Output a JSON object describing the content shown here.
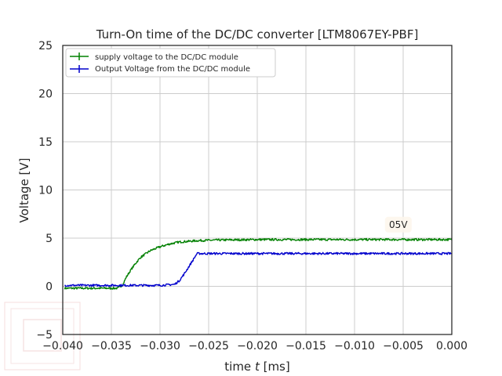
{
  "chart_data": {
    "type": "line",
    "title": "Turn-On time of the DC/DC converter [LTM8067EY-PBF]",
    "xlabel": "time $t$ [ms]",
    "xlabel_prefix": "time ",
    "xlabel_var": "t",
    "xlabel_suffix": " [ms]",
    "ylabel": "Voltage [V]",
    "xlim": [
      -0.04,
      0.0
    ],
    "ylim": [
      -5,
      25
    ],
    "xticks": [
      "−0.040",
      "−0.035",
      "−0.030",
      "−0.025",
      "−0.020",
      "−0.015",
      "−0.010",
      "−0.005",
      "0.000"
    ],
    "yticks": [
      "−5",
      "0",
      "5",
      "10",
      "15",
      "20",
      "25"
    ],
    "grid": true,
    "legend_placement": "upper-left",
    "annotation": {
      "text": "05V",
      "x": -0.0055,
      "y": 6.4
    },
    "series": [
      {
        "name": "supply voltage to the DC/DC module",
        "color": "#008000",
        "x": [
          -0.0398,
          -0.036,
          -0.0343,
          -0.0338,
          -0.0335,
          -0.033,
          -0.0325,
          -0.032,
          -0.031,
          -0.03,
          -0.029,
          -0.028,
          -0.026,
          -0.024,
          -0.02,
          -0.015,
          -0.01,
          -0.005,
          0.0
        ],
        "y": [
          -0.2,
          -0.2,
          -0.2,
          0.2,
          0.9,
          1.7,
          2.4,
          3.0,
          3.7,
          4.1,
          4.4,
          4.6,
          4.75,
          4.8,
          4.85,
          4.85,
          4.85,
          4.85,
          4.85
        ]
      },
      {
        "name": "Output Voltage from the DC/DC module",
        "color": "#0000cc",
        "x": [
          -0.0398,
          -0.03,
          -0.0285,
          -0.028,
          -0.0275,
          -0.027,
          -0.0265,
          -0.0262,
          -0.025,
          -0.02,
          -0.015,
          -0.01,
          -0.005,
          0.0
        ],
        "y": [
          0.1,
          0.1,
          0.2,
          0.6,
          1.3,
          2.1,
          2.9,
          3.4,
          3.4,
          3.4,
          3.4,
          3.4,
          3.4,
          3.4
        ]
      }
    ]
  }
}
